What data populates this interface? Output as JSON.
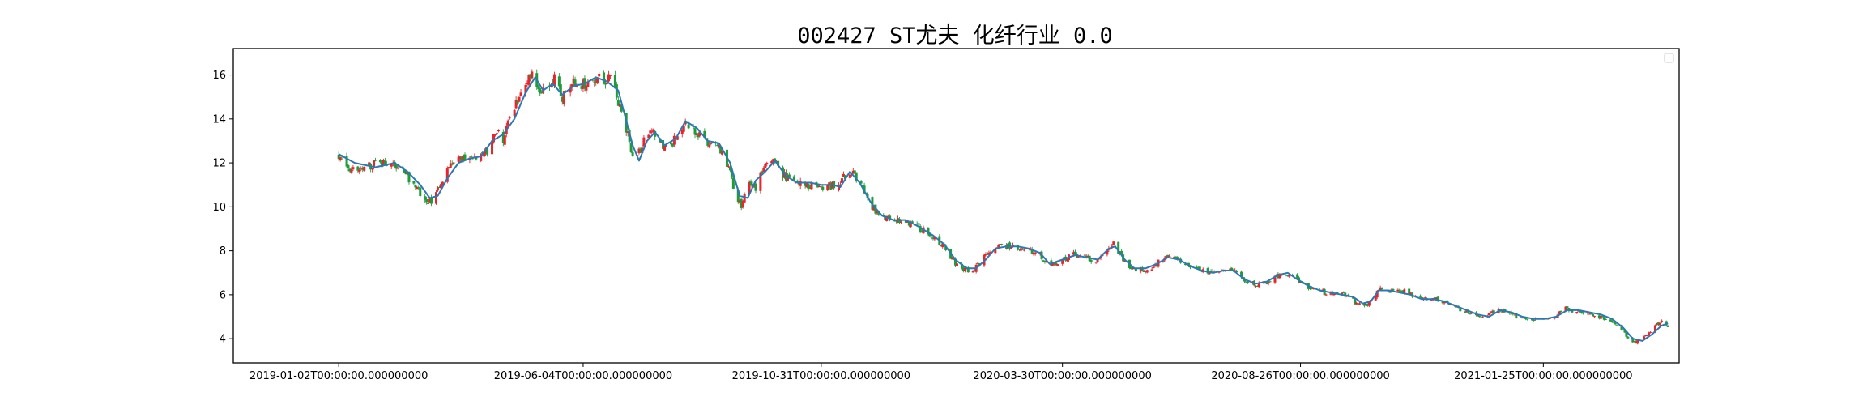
{
  "chart_data": {
    "type": "candlestick",
    "title": "002427 ST尤夫 化纤行业 0.0",
    "xlabel": "",
    "ylabel": "",
    "ylim": [
      2.9,
      17.2
    ],
    "xlim": [
      "2018-10-28",
      "2021-04-20"
    ],
    "yticks": [
      4,
      6,
      8,
      10,
      12,
      14,
      16
    ],
    "xticks": [
      {
        "date": "2019-01-02",
        "label": "2019-01-02T00:00:00.000000000"
      },
      {
        "date": "2019-06-04",
        "label": "2019-06-04T00:00:00.000000000"
      },
      {
        "date": "2019-10-31",
        "label": "2019-10-31T00:00:00.000000000"
      },
      {
        "date": "2020-03-30",
        "label": "2020-03-30T00:00:00.000000000"
      },
      {
        "date": "2020-08-26",
        "label": "2020-08-26T00:00:00.000000000"
      },
      {
        "date": "2021-01-25",
        "label": "2021-01-25T00:00:00.000000000"
      }
    ],
    "grid": false,
    "legend": {
      "position": "top-right",
      "entries": []
    },
    "colors": {
      "up": "#e8242c",
      "down": "#229a3a",
      "line": "#2b78b5"
    },
    "price_path": [
      [
        "2019-01-02",
        12.3
      ],
      [
        "2019-01-08",
        11.8
      ],
      [
        "2019-01-16",
        11.6
      ],
      [
        "2019-01-25",
        12.0
      ],
      [
        "2019-02-05",
        11.9
      ],
      [
        "2019-02-14",
        11.4
      ],
      [
        "2019-02-22",
        10.6
      ],
      [
        "2019-02-28",
        10.2
      ],
      [
        "2019-03-06",
        10.8
      ],
      [
        "2019-03-12",
        11.8
      ],
      [
        "2019-03-18",
        12.2
      ],
      [
        "2019-03-25",
        12.3
      ],
      [
        "2019-04-01",
        12.2
      ],
      [
        "2019-04-05",
        12.6
      ],
      [
        "2019-04-10",
        13.5
      ],
      [
        "2019-04-15",
        13.1
      ],
      [
        "2019-04-19",
        14.2
      ],
      [
        "2019-04-25",
        14.8
      ],
      [
        "2019-05-01",
        15.9
      ],
      [
        "2019-05-05",
        15.9
      ],
      [
        "2019-05-09",
        15.2
      ],
      [
        "2019-05-13",
        15.6
      ],
      [
        "2019-05-17",
        15.9
      ],
      [
        "2019-05-22",
        15.0
      ],
      [
        "2019-05-28",
        15.6
      ],
      [
        "2019-06-04",
        15.6
      ],
      [
        "2019-06-10",
        15.9
      ],
      [
        "2019-06-17",
        15.7
      ],
      [
        "2019-06-21",
        15.8
      ],
      [
        "2019-06-25",
        15.0
      ],
      [
        "2019-06-30",
        13.8
      ],
      [
        "2019-07-05",
        12.4
      ],
      [
        "2019-07-10",
        12.6
      ],
      [
        "2019-07-15",
        13.5
      ],
      [
        "2019-07-19",
        13.3
      ],
      [
        "2019-07-25",
        12.6
      ],
      [
        "2019-07-30",
        12.9
      ],
      [
        "2019-08-05",
        13.6
      ],
      [
        "2019-08-09",
        13.7
      ],
      [
        "2019-08-15",
        13.3
      ],
      [
        "2019-08-20",
        12.9
      ],
      [
        "2019-08-26",
        12.9
      ],
      [
        "2019-09-01",
        12.2
      ],
      [
        "2019-09-06",
        11.0
      ],
      [
        "2019-09-11",
        10.0
      ],
      [
        "2019-09-16",
        11.3
      ],
      [
        "2019-09-20",
        10.8
      ],
      [
        "2019-09-25",
        11.8
      ],
      [
        "2019-10-01",
        12.2
      ],
      [
        "2019-10-07",
        11.5
      ],
      [
        "2019-10-12",
        11.1
      ],
      [
        "2019-10-18",
        11.0
      ],
      [
        "2019-10-25",
        11.0
      ],
      [
        "2019-10-31",
        10.9
      ],
      [
        "2019-11-05",
        11.0
      ],
      [
        "2019-11-10",
        10.9
      ],
      [
        "2019-11-15",
        11.4
      ],
      [
        "2019-11-20",
        11.6
      ],
      [
        "2019-11-26",
        10.8
      ],
      [
        "2019-12-02",
        10.0
      ],
      [
        "2019-12-08",
        9.5
      ],
      [
        "2019-12-15",
        9.4
      ],
      [
        "2019-12-22",
        9.4
      ],
      [
        "2019-12-30",
        9.1
      ],
      [
        "2020-01-08",
        8.7
      ],
      [
        "2020-01-15",
        8.3
      ],
      [
        "2020-01-22",
        7.5
      ],
      [
        "2020-01-29",
        7.1
      ],
      [
        "2020-02-04",
        7.2
      ],
      [
        "2020-02-10",
        7.7
      ],
      [
        "2020-02-16",
        8.2
      ],
      [
        "2020-02-22",
        8.2
      ],
      [
        "2020-03-01",
        8.2
      ],
      [
        "2020-03-08",
        8.1
      ],
      [
        "2020-03-15",
        7.9
      ],
      [
        "2020-03-22",
        7.3
      ],
      [
        "2020-03-30",
        7.6
      ],
      [
        "2020-04-06",
        7.8
      ],
      [
        "2020-04-13",
        7.7
      ],
      [
        "2020-04-20",
        7.5
      ],
      [
        "2020-04-26",
        8.0
      ],
      [
        "2020-05-01",
        8.3
      ],
      [
        "2020-05-07",
        7.6
      ],
      [
        "2020-05-13",
        7.2
      ],
      [
        "2020-05-19",
        7.1
      ],
      [
        "2020-05-26",
        7.3
      ],
      [
        "2020-06-02",
        7.7
      ],
      [
        "2020-06-09",
        7.7
      ],
      [
        "2020-06-16",
        7.4
      ],
      [
        "2020-06-23",
        7.2
      ],
      [
        "2020-06-30",
        7.0
      ],
      [
        "2020-07-07",
        7.1
      ],
      [
        "2020-07-14",
        7.2
      ],
      [
        "2020-07-20",
        6.8
      ],
      [
        "2020-07-27",
        6.5
      ],
      [
        "2020-08-03",
        6.5
      ],
      [
        "2020-08-10",
        6.8
      ],
      [
        "2020-08-16",
        7.0
      ],
      [
        "2020-08-22",
        6.8
      ],
      [
        "2020-08-26",
        6.5
      ],
      [
        "2020-09-03",
        6.3
      ],
      [
        "2020-09-10",
        6.1
      ],
      [
        "2020-09-17",
        6.0
      ],
      [
        "2020-09-24",
        6.0
      ],
      [
        "2020-09-30",
        5.6
      ],
      [
        "2020-10-06",
        5.5
      ],
      [
        "2020-10-12",
        6.0
      ],
      [
        "2020-10-16",
        6.3
      ],
      [
        "2020-10-22",
        6.2
      ],
      [
        "2020-10-28",
        6.2
      ],
      [
        "2020-11-04",
        6.0
      ],
      [
        "2020-11-11",
        5.8
      ],
      [
        "2020-11-18",
        5.8
      ],
      [
        "2020-11-25",
        5.6
      ],
      [
        "2020-12-02",
        5.4
      ],
      [
        "2020-12-09",
        5.2
      ],
      [
        "2020-12-16",
        5.0
      ],
      [
        "2020-12-22",
        5.1
      ],
      [
        "2020-12-28",
        5.3
      ],
      [
        "2021-01-04",
        5.2
      ],
      [
        "2021-01-11",
        4.9
      ],
      [
        "2021-01-18",
        4.9
      ],
      [
        "2021-01-25",
        4.9
      ],
      [
        "2021-02-01",
        5.0
      ],
      [
        "2021-02-08",
        5.4
      ],
      [
        "2021-02-15",
        5.2
      ],
      [
        "2021-02-22",
        5.1
      ],
      [
        "2021-03-01",
        5.0
      ],
      [
        "2021-03-08",
        4.8
      ],
      [
        "2021-03-15",
        4.4
      ],
      [
        "2021-03-22",
        3.8
      ],
      [
        "2021-03-26",
        3.9
      ],
      [
        "2021-03-31",
        4.2
      ],
      [
        "2021-04-05",
        4.6
      ],
      [
        "2021-04-09",
        4.8
      ],
      [
        "2021-04-13",
        4.6
      ]
    ],
    "moving_average": [
      [
        "2019-01-02",
        12.4
      ],
      [
        "2019-01-12",
        12.0
      ],
      [
        "2019-01-25",
        11.8
      ],
      [
        "2019-02-06",
        12.0
      ],
      [
        "2019-02-14",
        11.6
      ],
      [
        "2019-02-22",
        11.0
      ],
      [
        "2019-02-28",
        10.4
      ],
      [
        "2019-03-05",
        10.5
      ],
      [
        "2019-03-11",
        11.3
      ],
      [
        "2019-03-18",
        12.0
      ],
      [
        "2019-03-25",
        12.2
      ],
      [
        "2019-04-01",
        12.3
      ],
      [
        "2019-04-08",
        13.0
      ],
      [
        "2019-04-15",
        13.3
      ],
      [
        "2019-04-22",
        14.0
      ],
      [
        "2019-04-29",
        15.2
      ],
      [
        "2019-05-05",
        15.9
      ],
      [
        "2019-05-10",
        15.3
      ],
      [
        "2019-05-16",
        15.6
      ],
      [
        "2019-05-22",
        15.1
      ],
      [
        "2019-05-29",
        15.5
      ],
      [
        "2019-06-05",
        15.6
      ],
      [
        "2019-06-12",
        15.9
      ],
      [
        "2019-06-19",
        15.7
      ],
      [
        "2019-06-26",
        15.3
      ],
      [
        "2019-06-30",
        14.2
      ],
      [
        "2019-07-05",
        12.8
      ],
      [
        "2019-07-09",
        12.1
      ],
      [
        "2019-07-14",
        13.0
      ],
      [
        "2019-07-19",
        13.4
      ],
      [
        "2019-07-25",
        12.8
      ],
      [
        "2019-08-01",
        13.1
      ],
      [
        "2019-08-07",
        13.9
      ],
      [
        "2019-08-14",
        13.6
      ],
      [
        "2019-08-21",
        13.0
      ],
      [
        "2019-08-28",
        12.9
      ],
      [
        "2019-09-04",
        12.0
      ],
      [
        "2019-09-10",
        10.5
      ],
      [
        "2019-09-15",
        10.4
      ],
      [
        "2019-09-20",
        11.2
      ],
      [
        "2019-09-26",
        11.6
      ],
      [
        "2019-10-02",
        12.1
      ],
      [
        "2019-10-09",
        11.4
      ],
      [
        "2019-10-16",
        11.1
      ],
      [
        "2019-10-24",
        11.1
      ],
      [
        "2019-10-31",
        11.0
      ],
      [
        "2019-11-07",
        11.0
      ],
      [
        "2019-11-12",
        10.9
      ],
      [
        "2019-11-18",
        11.6
      ],
      [
        "2019-11-24",
        11.1
      ],
      [
        "2019-12-01",
        10.2
      ],
      [
        "2019-12-08",
        9.6
      ],
      [
        "2019-12-15",
        9.4
      ],
      [
        "2019-12-23",
        9.4
      ],
      [
        "2019-12-31",
        9.1
      ],
      [
        "2020-01-09",
        8.7
      ],
      [
        "2020-01-16",
        8.3
      ],
      [
        "2020-01-23",
        7.6
      ],
      [
        "2020-01-30",
        7.2
      ],
      [
        "2020-02-05",
        7.2
      ],
      [
        "2020-02-11",
        7.6
      ],
      [
        "2020-02-17",
        8.1
      ],
      [
        "2020-02-24",
        8.2
      ],
      [
        "2020-03-02",
        8.2
      ],
      [
        "2020-03-09",
        8.1
      ],
      [
        "2020-03-16",
        7.9
      ],
      [
        "2020-03-22",
        7.4
      ],
      [
        "2020-03-30",
        7.6
      ],
      [
        "2020-04-07",
        7.8
      ],
      [
        "2020-04-14",
        7.7
      ],
      [
        "2020-04-21",
        7.6
      ],
      [
        "2020-04-28",
        8.1
      ],
      [
        "2020-05-02",
        8.2
      ],
      [
        "2020-05-08",
        7.6
      ],
      [
        "2020-05-14",
        7.2
      ],
      [
        "2020-05-21",
        7.2
      ],
      [
        "2020-05-28",
        7.4
      ],
      [
        "2020-06-04",
        7.7
      ],
      [
        "2020-06-11",
        7.6
      ],
      [
        "2020-06-18",
        7.3
      ],
      [
        "2020-06-25",
        7.1
      ],
      [
        "2020-07-02",
        7.0
      ],
      [
        "2020-07-09",
        7.1
      ],
      [
        "2020-07-15",
        7.1
      ],
      [
        "2020-07-22",
        6.7
      ],
      [
        "2020-07-29",
        6.5
      ],
      [
        "2020-08-05",
        6.6
      ],
      [
        "2020-08-12",
        6.9
      ],
      [
        "2020-08-18",
        7.0
      ],
      [
        "2020-08-24",
        6.7
      ],
      [
        "2020-08-31",
        6.4
      ],
      [
        "2020-09-07",
        6.2
      ],
      [
        "2020-09-14",
        6.1
      ],
      [
        "2020-09-21",
        6.0
      ],
      [
        "2020-09-28",
        5.9
      ],
      [
        "2020-10-04",
        5.6
      ],
      [
        "2020-10-09",
        5.7
      ],
      [
        "2020-10-14",
        6.2
      ],
      [
        "2020-10-20",
        6.2
      ],
      [
        "2020-10-27",
        6.1
      ],
      [
        "2020-11-03",
        6.0
      ],
      [
        "2020-11-10",
        5.8
      ],
      [
        "2020-11-17",
        5.8
      ],
      [
        "2020-11-24",
        5.7
      ],
      [
        "2020-12-01",
        5.5
      ],
      [
        "2020-12-08",
        5.3
      ],
      [
        "2020-12-15",
        5.1
      ],
      [
        "2020-12-22",
        5.0
      ],
      [
        "2020-12-29",
        5.3
      ],
      [
        "2021-01-05",
        5.2
      ],
      [
        "2021-01-12",
        5.0
      ],
      [
        "2021-01-19",
        4.9
      ],
      [
        "2021-01-26",
        4.9
      ],
      [
        "2021-02-02",
        5.0
      ],
      [
        "2021-02-09",
        5.3
      ],
      [
        "2021-02-16",
        5.3
      ],
      [
        "2021-02-23",
        5.2
      ],
      [
        "2021-03-02",
        5.1
      ],
      [
        "2021-03-09",
        4.9
      ],
      [
        "2021-03-16",
        4.5
      ],
      [
        "2021-03-22",
        4.0
      ],
      [
        "2021-03-28",
        3.9
      ],
      [
        "2021-04-03",
        4.2
      ],
      [
        "2021-04-09",
        4.6
      ],
      [
        "2021-04-13",
        4.7
      ]
    ]
  }
}
